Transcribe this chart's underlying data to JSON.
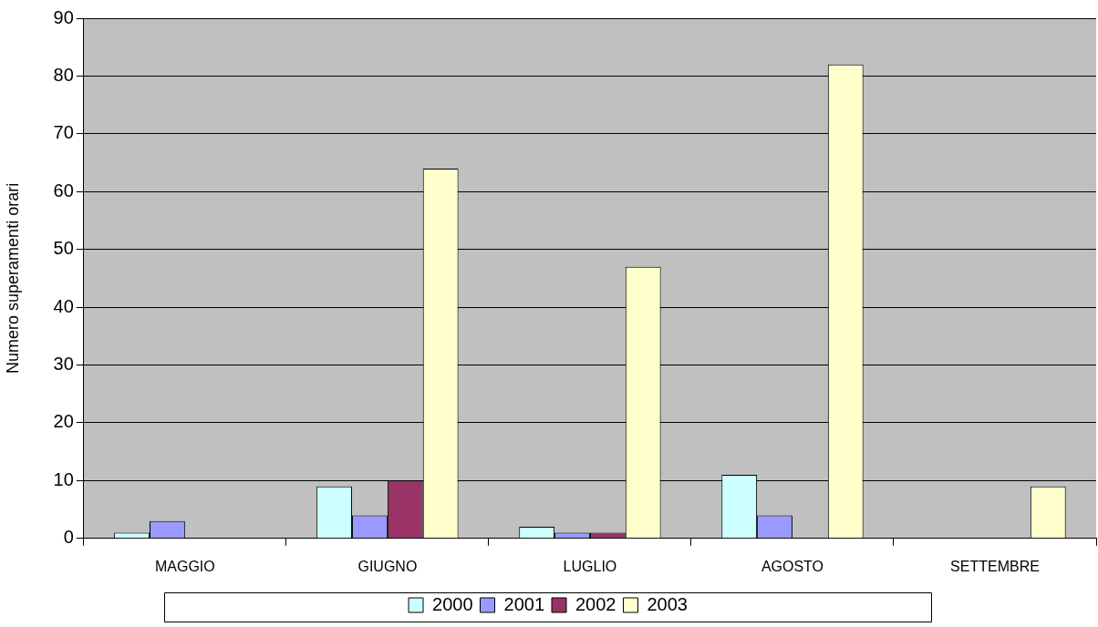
{
  "chart_data": {
    "type": "bar",
    "ylabel": "Numero superamenti orari",
    "categories": [
      "MAGGIO",
      "GIUGNO",
      "LUGLIO",
      "AGOSTO",
      "SETTEMBRE"
    ],
    "series": [
      {
        "name": "2000",
        "color": "#ccffff",
        "values": [
          1,
          9,
          2,
          11,
          0
        ]
      },
      {
        "name": "2001",
        "color": "#9999ff",
        "values": [
          3,
          4,
          1,
          4,
          0
        ]
      },
      {
        "name": "2002",
        "color": "#993366",
        "values": [
          0,
          10,
          1,
          0,
          0
        ]
      },
      {
        "name": "2003",
        "color": "#ffffcc",
        "values": [
          0,
          64,
          47,
          82,
          9
        ]
      }
    ],
    "ylim": [
      0,
      90
    ],
    "yticks": [
      0,
      10,
      20,
      30,
      40,
      50,
      60,
      70,
      80,
      90
    ],
    "grid": "y",
    "legend": "bottom"
  }
}
